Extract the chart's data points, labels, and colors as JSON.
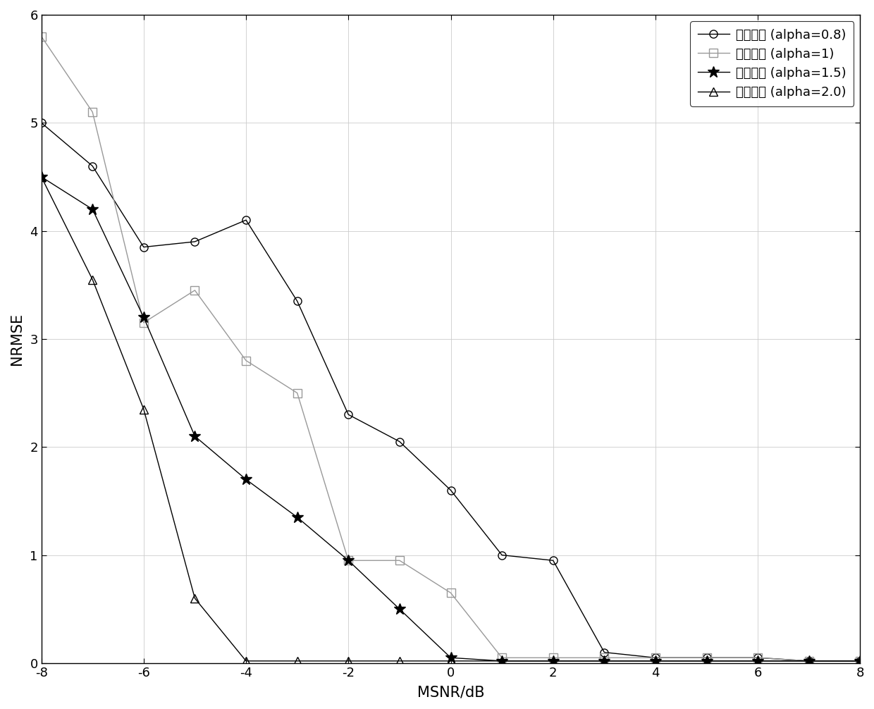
{
  "series": [
    {
      "label": "符号长度 (alpha=0.8)",
      "marker": "o",
      "color": "#000000",
      "linestyle": "-",
      "x": [
        -8,
        -7,
        -6,
        -5,
        -4,
        -3,
        -2,
        -1,
        0,
        1,
        2,
        3,
        4,
        5,
        6,
        7,
        8
      ],
      "y": [
        5.0,
        4.6,
        3.85,
        3.9,
        4.1,
        3.35,
        2.3,
        2.05,
        1.6,
        1.0,
        0.95,
        0.1,
        0.05,
        0.05,
        0.05,
        0.02,
        0.02
      ]
    },
    {
      "label": "符号长度 (alpha=1)",
      "marker": "s",
      "color": "#999999",
      "linestyle": "-",
      "x": [
        -8,
        -7,
        -6,
        -5,
        -4,
        -3,
        -2,
        -1,
        0,
        1,
        2,
        3,
        4,
        5,
        6,
        7,
        8
      ],
      "y": [
        5.8,
        5.1,
        3.15,
        3.45,
        2.8,
        2.5,
        0.95,
        0.95,
        0.65,
        0.05,
        0.05,
        0.05,
        0.05,
        0.05,
        0.05,
        0.02,
        0.02
      ]
    },
    {
      "label": "符号长度 (alpha=1.5)",
      "marker": "*",
      "color": "#000000",
      "linestyle": "-",
      "x": [
        -8,
        -7,
        -6,
        -5,
        -4,
        -3,
        -2,
        -1,
        0,
        1,
        2,
        3,
        4,
        5,
        6,
        7,
        8
      ],
      "y": [
        4.5,
        4.2,
        3.2,
        2.1,
        1.7,
        1.35,
        0.95,
        0.5,
        0.05,
        0.02,
        0.02,
        0.02,
        0.02,
        0.02,
        0.02,
        0.02,
        0.02
      ]
    },
    {
      "label": "符号长度 (alpha=2.0)",
      "marker": "^",
      "color": "#000000",
      "linestyle": "-",
      "x": [
        -8,
        -7,
        -6,
        -5,
        -4,
        -3,
        -2,
        -1,
        0,
        1,
        2,
        3,
        4,
        5,
        6,
        7,
        8
      ],
      "y": [
        4.5,
        3.55,
        2.35,
        0.6,
        0.02,
        0.02,
        0.02,
        0.02,
        0.02,
        0.02,
        0.02,
        0.02,
        0.02,
        0.02,
        0.02,
        0.02,
        0.02
      ]
    }
  ],
  "xlabel": "MSNR/dB",
  "ylabel": "NRMSE",
  "xlim": [
    -8,
    8
  ],
  "ylim": [
    0,
    6
  ],
  "xticks": [
    -8,
    -6,
    -4,
    -2,
    0,
    2,
    4,
    6,
    8
  ],
  "yticks": [
    0,
    1,
    2,
    3,
    4,
    5,
    6
  ],
  "legend_loc": "upper right",
  "background_color": "#ffffff",
  "line_width": 1.0,
  "marker_size": 8
}
